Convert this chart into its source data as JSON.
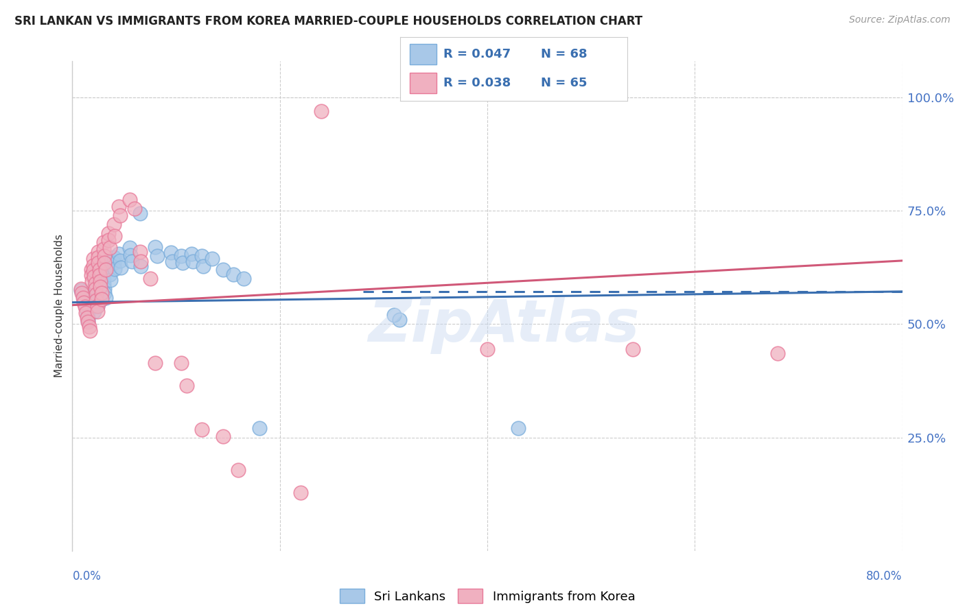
{
  "title": "SRI LANKAN VS IMMIGRANTS FROM KOREA MARRIED-COUPLE HOUSEHOLDS CORRELATION CHART",
  "source": "Source: ZipAtlas.com",
  "ylabel": "Married-couple Households",
  "ytick_labels": [
    "100.0%",
    "75.0%",
    "50.0%",
    "25.0%"
  ],
  "ytick_values": [
    1.0,
    0.75,
    0.5,
    0.25
  ],
  "xlim": [
    0.0,
    0.8
  ],
  "ylim": [
    0.0,
    1.08
  ],
  "legend_label_blue": "Sri Lankans",
  "legend_label_pink": "Immigrants from Korea",
  "blue_color": "#A8C8E8",
  "pink_color": "#F0B0C0",
  "blue_edge": "#7AADDB",
  "pink_edge": "#E87898",
  "blue_line_color": "#3A6FB0",
  "pink_line_color": "#D05878",
  "blue_scatter": [
    [
      0.008,
      0.575
    ],
    [
      0.01,
      0.565
    ],
    [
      0.011,
      0.555
    ],
    [
      0.012,
      0.548
    ],
    [
      0.013,
      0.538
    ],
    [
      0.014,
      0.528
    ],
    [
      0.015,
      0.518
    ],
    [
      0.015,
      0.508
    ],
    [
      0.016,
      0.535
    ],
    [
      0.018,
      0.57
    ],
    [
      0.018,
      0.558
    ],
    [
      0.018,
      0.548
    ],
    [
      0.019,
      0.538
    ],
    [
      0.02,
      0.562
    ],
    [
      0.02,
      0.55
    ],
    [
      0.02,
      0.54
    ],
    [
      0.021,
      0.528
    ],
    [
      0.022,
      0.618
    ],
    [
      0.022,
      0.608
    ],
    [
      0.022,
      0.595
    ],
    [
      0.022,
      0.585
    ],
    [
      0.023,
      0.575
    ],
    [
      0.024,
      0.562
    ],
    [
      0.024,
      0.55
    ],
    [
      0.024,
      0.54
    ],
    [
      0.025,
      0.625
    ],
    [
      0.025,
      0.61
    ],
    [
      0.025,
      0.598
    ],
    [
      0.025,
      0.585
    ],
    [
      0.026,
      0.575
    ],
    [
      0.026,
      0.562
    ],
    [
      0.027,
      0.552
    ],
    [
      0.03,
      0.625
    ],
    [
      0.03,
      0.612
    ],
    [
      0.03,
      0.6
    ],
    [
      0.03,
      0.588
    ],
    [
      0.031,
      0.578
    ],
    [
      0.031,
      0.568
    ],
    [
      0.032,
      0.558
    ],
    [
      0.035,
      0.64
    ],
    [
      0.035,
      0.625
    ],
    [
      0.036,
      0.61
    ],
    [
      0.037,
      0.598
    ],
    [
      0.04,
      0.648
    ],
    [
      0.04,
      0.635
    ],
    [
      0.041,
      0.622
    ],
    [
      0.045,
      0.655
    ],
    [
      0.046,
      0.64
    ],
    [
      0.047,
      0.625
    ],
    [
      0.055,
      0.668
    ],
    [
      0.056,
      0.652
    ],
    [
      0.057,
      0.638
    ],
    [
      0.065,
      0.745
    ],
    [
      0.066,
      0.628
    ],
    [
      0.08,
      0.67
    ],
    [
      0.082,
      0.65
    ],
    [
      0.095,
      0.658
    ],
    [
      0.096,
      0.638
    ],
    [
      0.105,
      0.65
    ],
    [
      0.106,
      0.635
    ],
    [
      0.115,
      0.655
    ],
    [
      0.116,
      0.638
    ],
    [
      0.125,
      0.65
    ],
    [
      0.126,
      0.628
    ],
    [
      0.135,
      0.645
    ],
    [
      0.145,
      0.62
    ],
    [
      0.155,
      0.61
    ],
    [
      0.165,
      0.6
    ],
    [
      0.18,
      0.27
    ],
    [
      0.31,
      0.52
    ],
    [
      0.315,
      0.51
    ],
    [
      0.43,
      0.27
    ]
  ],
  "pink_scatter": [
    [
      0.008,
      0.578
    ],
    [
      0.009,
      0.568
    ],
    [
      0.01,
      0.558
    ],
    [
      0.011,
      0.548
    ],
    [
      0.012,
      0.538
    ],
    [
      0.013,
      0.525
    ],
    [
      0.014,
      0.515
    ],
    [
      0.015,
      0.505
    ],
    [
      0.016,
      0.495
    ],
    [
      0.017,
      0.485
    ],
    [
      0.018,
      0.62
    ],
    [
      0.018,
      0.608
    ],
    [
      0.019,
      0.595
    ],
    [
      0.02,
      0.645
    ],
    [
      0.02,
      0.63
    ],
    [
      0.02,
      0.618
    ],
    [
      0.021,
      0.605
    ],
    [
      0.022,
      0.59
    ],
    [
      0.022,
      0.578
    ],
    [
      0.023,
      0.565
    ],
    [
      0.023,
      0.552
    ],
    [
      0.024,
      0.54
    ],
    [
      0.024,
      0.528
    ],
    [
      0.025,
      0.66
    ],
    [
      0.025,
      0.648
    ],
    [
      0.025,
      0.635
    ],
    [
      0.026,
      0.62
    ],
    [
      0.026,
      0.608
    ],
    [
      0.027,
      0.595
    ],
    [
      0.027,
      0.582
    ],
    [
      0.028,
      0.568
    ],
    [
      0.028,
      0.555
    ],
    [
      0.03,
      0.68
    ],
    [
      0.03,
      0.665
    ],
    [
      0.031,
      0.65
    ],
    [
      0.031,
      0.635
    ],
    [
      0.032,
      0.62
    ],
    [
      0.035,
      0.7
    ],
    [
      0.035,
      0.685
    ],
    [
      0.036,
      0.668
    ],
    [
      0.04,
      0.72
    ],
    [
      0.041,
      0.695
    ],
    [
      0.045,
      0.76
    ],
    [
      0.046,
      0.74
    ],
    [
      0.055,
      0.775
    ],
    [
      0.06,
      0.755
    ],
    [
      0.065,
      0.66
    ],
    [
      0.066,
      0.638
    ],
    [
      0.075,
      0.6
    ],
    [
      0.08,
      0.415
    ],
    [
      0.105,
      0.415
    ],
    [
      0.11,
      0.365
    ],
    [
      0.125,
      0.268
    ],
    [
      0.145,
      0.252
    ],
    [
      0.16,
      0.178
    ],
    [
      0.22,
      0.128
    ],
    [
      0.24,
      0.97
    ],
    [
      0.4,
      0.445
    ],
    [
      0.54,
      0.445
    ],
    [
      0.68,
      0.435
    ]
  ],
  "blue_line": [
    0.0,
    0.8,
    0.548,
    0.572
  ],
  "pink_line": [
    0.0,
    0.8,
    0.542,
    0.64
  ],
  "dashed_line": [
    0.28,
    0.8,
    0.572,
    0.572
  ],
  "watermark": "ZipAtlas",
  "title_fontsize": 12,
  "tick_label_color": "#4472C4",
  "grid_color": "#CCCCCC",
  "grid_style": "--"
}
